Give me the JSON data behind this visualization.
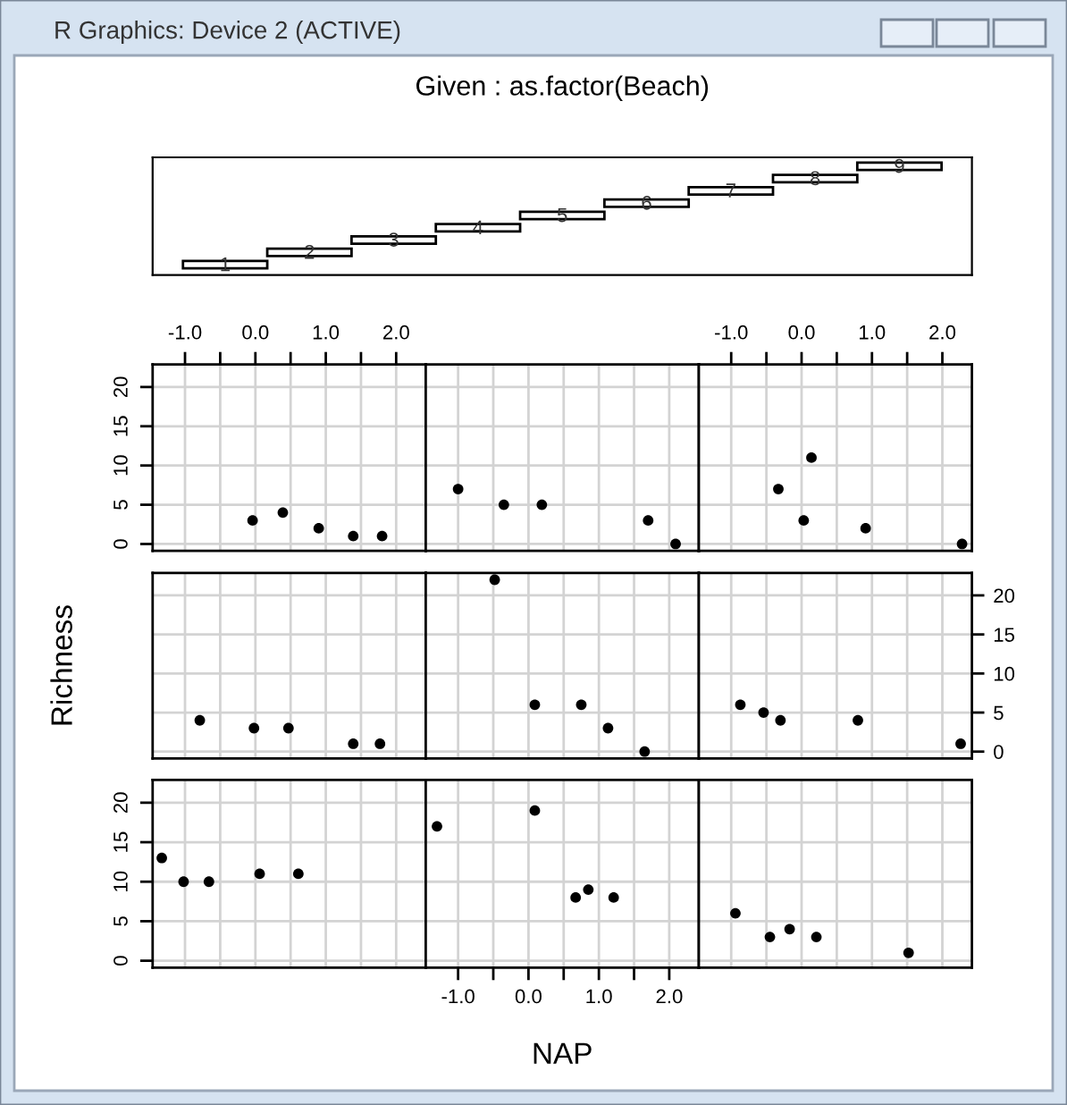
{
  "chart_data": [
    {
      "type": "other",
      "title": "Given : as.factor(Beach)",
      "categories": [
        "1",
        "2",
        "3",
        "4",
        "5",
        "6",
        "7",
        "8",
        "9"
      ],
      "annotations": [
        "R Graphics: Device 2 (ACTIVE)"
      ]
    },
    {
      "type": "scatter",
      "x": [
        -0.04,
        0.39,
        0.9,
        1.39,
        1.8
      ],
      "values": [
        3,
        4,
        2,
        1,
        1
      ],
      "color": "#000000",
      "marker": "circle",
      "grid": true,
      "xlim": [
        -1.46,
        2.42
      ],
      "ylim": [
        -0.88,
        22.88
      ],
      "xticks": [
        {
          "value": -1,
          "label": "-1.0"
        },
        {
          "value": -0.5,
          "label": null
        },
        {
          "value": 0,
          "label": "0.0"
        },
        {
          "value": 0.5,
          "label": null
        },
        {
          "value": 1,
          "label": "1.0"
        },
        {
          "value": 1.5,
          "label": null
        },
        {
          "value": 2,
          "label": "2.0"
        }
      ],
      "yticks": [
        0,
        5,
        10,
        15,
        20
      ]
    },
    {
      "type": "scatter",
      "x": [
        -1.0,
        -0.35,
        0.19,
        1.7,
        2.09
      ],
      "values": [
        7,
        5,
        5,
        3,
        0
      ],
      "color": "#000000",
      "marker": "circle",
      "grid": true,
      "xlim": [
        -1.46,
        2.42
      ],
      "ylim": [
        -0.88,
        22.88
      ],
      "xticks": [
        {
          "value": -1,
          "label": null
        },
        {
          "value": -0.5,
          "label": null
        },
        {
          "value": 0,
          "label": null
        },
        {
          "value": 0.5,
          "label": null
        },
        {
          "value": 1,
          "label": null
        },
        {
          "value": 1.5,
          "label": null
        },
        {
          "value": 2,
          "label": null
        }
      ],
      "yticks": [
        0,
        5,
        10,
        15,
        20
      ],
      "tick_labels": false
    },
    {
      "type": "scatter",
      "x": [
        -0.33,
        0.03,
        0.14,
        0.91,
        2.28
      ],
      "values": [
        7,
        3,
        11,
        2,
        0
      ],
      "color": "#000000",
      "marker": "circle",
      "grid": true,
      "xlim": [
        -1.46,
        2.42
      ],
      "ylim": [
        -0.88,
        22.88
      ],
      "xticks": [
        {
          "value": -1,
          "label": "-1.0"
        },
        {
          "value": -0.5,
          "label": null
        },
        {
          "value": 0,
          "label": "0.0"
        },
        {
          "value": 0.5,
          "label": null
        },
        {
          "value": 1,
          "label": "1.0"
        },
        {
          "value": 1.5,
          "label": null
        },
        {
          "value": 2,
          "label": "2.0"
        }
      ],
      "yticks": [
        0,
        5,
        10,
        15,
        20
      ],
      "tick_labels": "x"
    },
    {
      "type": "scatter",
      "ylabel": "Richness",
      "x": [
        -0.79,
        -0.02,
        0.47,
        1.39,
        1.77
      ],
      "values": [
        4,
        3,
        3,
        1,
        1
      ],
      "color": "#000000",
      "marker": "circle",
      "grid": true,
      "xlim": [
        -1.46,
        2.42
      ],
      "ylim": [
        -0.88,
        22.88
      ],
      "xticks": [
        {
          "value": -1,
          "label": null
        },
        {
          "value": -0.5,
          "label": null
        },
        {
          "value": 0,
          "label": null
        },
        {
          "value": 0.5,
          "label": null
        },
        {
          "value": 1,
          "label": null
        },
        {
          "value": 1.5,
          "label": null
        },
        {
          "value": 2,
          "label": null
        }
      ],
      "yticks": [
        0,
        5,
        10,
        15,
        20
      ],
      "tick_labels": false
    },
    {
      "type": "scatter",
      "x": [
        -0.48,
        0.09,
        0.75,
        1.13,
        1.65
      ],
      "values": [
        22,
        6,
        6,
        3,
        0
      ],
      "color": "#000000",
      "marker": "circle",
      "grid": true,
      "xlim": [
        -1.46,
        2.42
      ],
      "ylim": [
        -0.88,
        22.88
      ],
      "xticks": [
        {
          "value": -1,
          "label": null
        },
        {
          "value": -0.5,
          "label": null
        },
        {
          "value": 0,
          "label": null
        },
        {
          "value": 0.5,
          "label": null
        },
        {
          "value": 1,
          "label": null
        },
        {
          "value": 1.5,
          "label": null
        },
        {
          "value": 2,
          "label": null
        }
      ],
      "yticks": [
        0,
        5,
        10,
        15,
        20
      ],
      "tick_labels": false
    },
    {
      "type": "scatter",
      "x": [
        -0.87,
        -0.54,
        -0.3,
        0.8,
        2.26
      ],
      "values": [
        6,
        5,
        4,
        4,
        1
      ],
      "color": "#000000",
      "marker": "circle",
      "grid": true,
      "xlim": [
        -1.46,
        2.42
      ],
      "ylim": [
        -0.88,
        22.88
      ],
      "xticks": [
        {
          "value": -1,
          "label": null
        },
        {
          "value": -0.5,
          "label": null
        },
        {
          "value": 0,
          "label": null
        },
        {
          "value": 0.5,
          "label": null
        },
        {
          "value": 1,
          "label": null
        },
        {
          "value": 1.5,
          "label": null
        },
        {
          "value": 2,
          "label": null
        }
      ],
      "yticks": [
        0,
        5,
        10,
        15,
        20
      ],
      "tick_labels": "y"
    },
    {
      "type": "scatter",
      "x": [
        -1.33,
        -1.02,
        -0.66,
        0.06,
        0.61
      ],
      "values": [
        13,
        10,
        10,
        11,
        11
      ],
      "color": "#000000",
      "marker": "circle",
      "grid": true,
      "xlim": [
        -1.46,
        2.42
      ],
      "ylim": [
        -0.88,
        22.88
      ],
      "xticks": [
        {
          "value": -1,
          "label": null
        },
        {
          "value": -0.5,
          "label": null
        },
        {
          "value": 0,
          "label": null
        },
        {
          "value": 0.5,
          "label": null
        },
        {
          "value": 1,
          "label": null
        },
        {
          "value": 1.5,
          "label": null
        },
        {
          "value": 2,
          "label": null
        }
      ],
      "yticks": [
        0,
        5,
        10,
        15,
        20
      ],
      "tick_labels": "y"
    },
    {
      "type": "scatter",
      "xlabel": "NAP",
      "x": [
        -1.3,
        0.09,
        0.67,
        0.85,
        1.21
      ],
      "values": [
        17,
        19,
        8,
        9,
        8
      ],
      "color": "#000000",
      "marker": "circle",
      "grid": true,
      "xlim": [
        -1.46,
        2.42
      ],
      "ylim": [
        -0.88,
        22.88
      ],
      "xticks": [
        {
          "value": -1,
          "label": "-1.0"
        },
        {
          "value": -0.5,
          "label": null
        },
        {
          "value": 0,
          "label": "0.0"
        },
        {
          "value": 0.5,
          "label": null
        },
        {
          "value": 1,
          "label": "1.0"
        },
        {
          "value": 1.5,
          "label": null
        },
        {
          "value": 2,
          "label": "2.0"
        }
      ],
      "yticks": [
        0,
        5,
        10,
        15,
        20
      ],
      "tick_labels": "x"
    },
    {
      "type": "scatter",
      "x": [
        -0.94,
        -0.45,
        -0.17,
        0.21,
        1.52
      ],
      "values": [
        6,
        3,
        4,
        3,
        1
      ],
      "color": "#000000",
      "marker": "circle",
      "grid": true,
      "xlim": [
        -1.46,
        2.42
      ],
      "ylim": [
        -0.88,
        22.88
      ],
      "xticks": [
        {
          "value": -1,
          "label": null
        },
        {
          "value": -0.5,
          "label": null
        },
        {
          "value": 0,
          "label": null
        },
        {
          "value": 0.5,
          "label": null
        },
        {
          "value": 1,
          "label": null
        },
        {
          "value": 1.5,
          "label": null
        },
        {
          "value": 2,
          "label": null
        }
      ],
      "yticks": [
        0,
        5,
        10,
        15,
        20
      ],
      "tick_labels": false
    }
  ]
}
